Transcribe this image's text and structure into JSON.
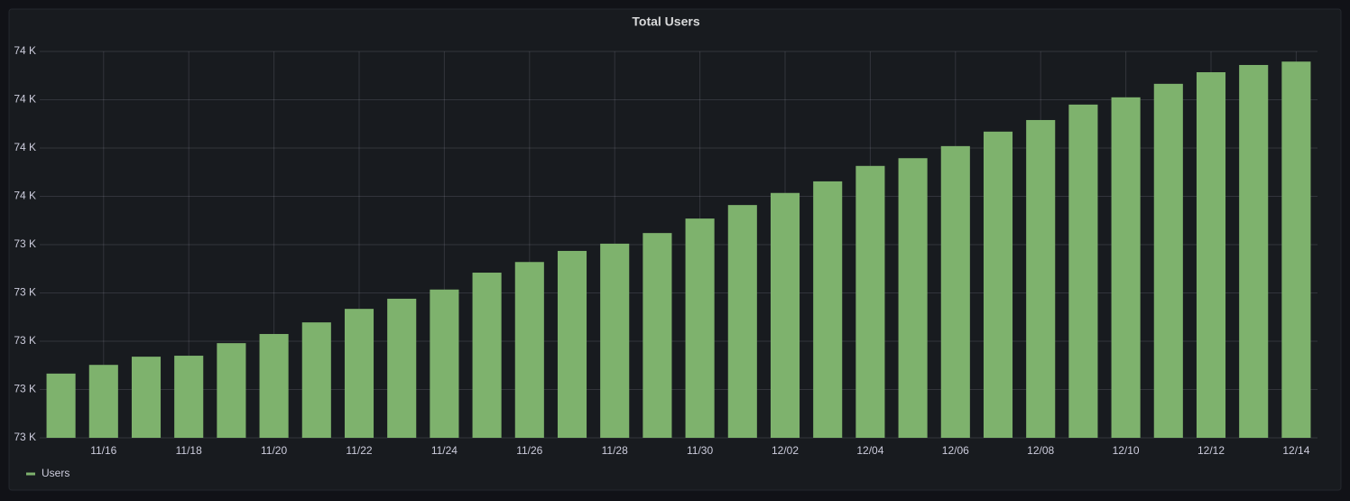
{
  "chart_data": {
    "type": "bar",
    "title": "Total Users",
    "categories": [
      null,
      "11/16",
      null,
      "11/18",
      null,
      "11/20",
      null,
      "11/22",
      null,
      "11/24",
      null,
      "11/26",
      null,
      "11/28",
      null,
      "11/30",
      null,
      "12/02",
      null,
      "12/04",
      null,
      "12/06",
      null,
      "12/08",
      null,
      "12/10",
      null,
      "12/12",
      null,
      "12/14"
    ],
    "series": [
      {
        "name": "Users",
        "color": "#7eb26d",
        "values": [
          73133,
          73151,
          73168,
          73170,
          73196,
          73215,
          73239,
          73267,
          73288,
          73307,
          73342,
          73364,
          73387,
          73402,
          73424,
          73454,
          73482,
          73507,
          73531,
          73563,
          73579,
          73604,
          73634,
          73658,
          73690,
          73705,
          73733,
          73757,
          73772,
          73779
        ]
      }
    ],
    "ylim": [
      73000,
      73800
    ],
    "yticks": [
      {
        "value": 73000,
        "label": "73 K"
      },
      {
        "value": 73100,
        "label": "73 K"
      },
      {
        "value": 73200,
        "label": "73 K"
      },
      {
        "value": 73300,
        "label": "73 K"
      },
      {
        "value": 73400,
        "label": "73 K"
      },
      {
        "value": 73500,
        "label": "74 K"
      },
      {
        "value": 73600,
        "label": "74 K"
      },
      {
        "value": 73700,
        "label": "74 K"
      },
      {
        "value": 73800,
        "label": "74 K"
      }
    ],
    "grid": true,
    "legend": "bottom-left"
  }
}
